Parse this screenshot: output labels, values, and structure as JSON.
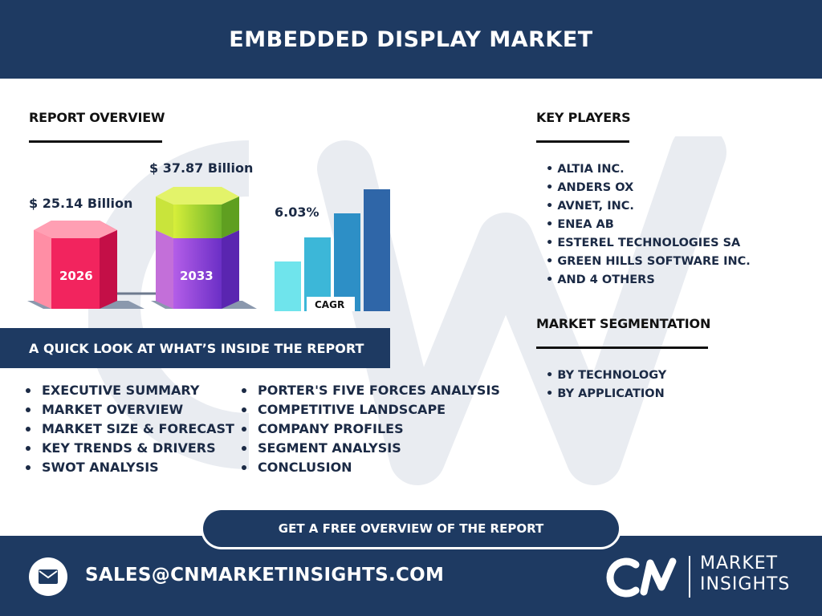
{
  "header": {
    "title": "EMBEDDED DISPLAY MARKET"
  },
  "overview": {
    "title": "REPORT OVERVIEW",
    "value_2026": "$ 25.14 Billion",
    "value_2033": "$ 37.87 Billion",
    "year_2026": "2026",
    "year_2033": "2033",
    "cagr_value": "6.03%",
    "cagr_label": "CAGR"
  },
  "key_players": {
    "title": "KEY PLAYERS",
    "items": [
      "• ALTIA INC.",
      "• ANDERS OX",
      "• AVNET, INC.",
      "• ENEA AB",
      "• ESTEREL TECHNOLOGIES SA",
      "• GREEN HILLS SOFTWARE INC.",
      "• AND 4 OTHERS"
    ]
  },
  "segmentation": {
    "title": "MARKET SEGMENTATION",
    "items": [
      "• BY TECHNOLOGY",
      "• BY APPLICATION"
    ]
  },
  "quick_look": {
    "title": "A QUICK LOOK AT WHAT’S INSIDE THE REPORT",
    "left": [
      "EXECUTIVE SUMMARY",
      "MARKET OVERVIEW",
      "MARKET SIZE & FORECAST",
      "KEY TRENDS & DRIVERS",
      "SWOT ANALYSIS"
    ],
    "right": [
      "PORTER'S FIVE FORCES ANALYSIS",
      "COMPETITIVE LANDSCAPE",
      "COMPANY PROFILES",
      "SEGMENT ANALYSIS",
      "CONCLUSION"
    ]
  },
  "cta": {
    "label": "GET A FREE OVERVIEW OF THE REPORT"
  },
  "footer": {
    "email": "SALES@CNMARKETINSIGHTS.COM",
    "logo_line1": "MARKET",
    "logo_line2": "INSIGHTS"
  },
  "colors": {
    "navy": "#1e3a62",
    "pink": "#ff2f6e",
    "green": "#a6cf2a",
    "purple": "#8a43d6",
    "cagr_bars": [
      "#6fe4ec",
      "#3cb7d8",
      "#2d8fc6",
      "#2f66a8"
    ]
  },
  "icons": {
    "mail": "mail-icon"
  }
}
